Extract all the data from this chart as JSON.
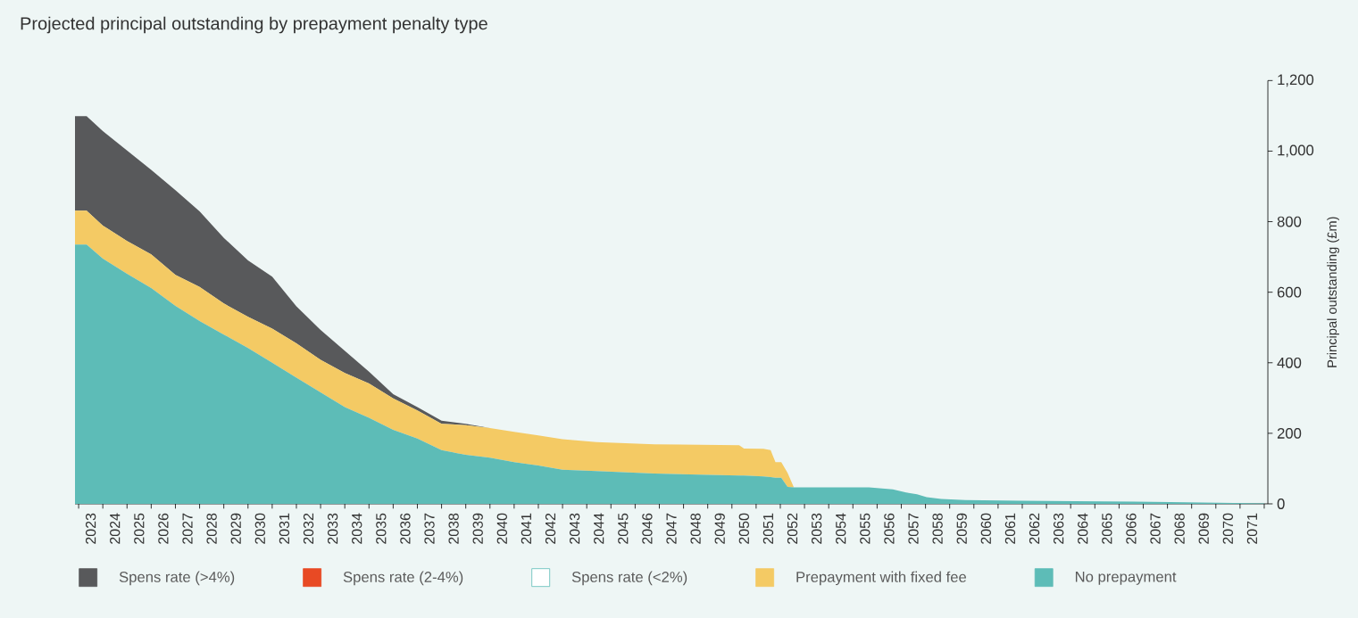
{
  "chart_data": {
    "type": "area",
    "title": "Projected principal outstanding by prepayment penalty type",
    "ylabel": "Principal outstanding (£m)",
    "stacked": true,
    "legend": "bottom",
    "x": [
      2022.85,
      2023.33,
      2024,
      2025,
      2026,
      2027,
      2028,
      2029,
      2030,
      2031,
      2032,
      2033,
      2034,
      2035,
      2036,
      2037,
      2038,
      2039,
      2040,
      2041,
      2042,
      2043,
      2044.4,
      2046.8,
      2050.3,
      2050.5,
      2051.3,
      2051.6,
      2051.8,
      2052.04,
      2052.3,
      2052.56,
      2055.66,
      2056.65,
      2057.2,
      2057.65,
      2058.05,
      2058.65,
      2059.65,
      2061.9,
      2065.3,
      2068.1,
      2070.1,
      2072.0
    ],
    "series": [
      {
        "name": "No prepayment",
        "color": "#5dbcb7",
        "values": [
          735,
          735,
          695,
          652,
          612,
          561,
          518,
          480,
          442,
          400,
          358,
          316,
          274,
          244,
          210,
          185,
          152,
          139,
          131,
          118,
          109,
          97,
          93,
          86,
          80,
          80,
          78,
          76,
          74,
          74,
          48,
          47,
          47,
          41,
          32,
          27,
          19,
          14,
          11,
          9,
          7,
          5,
          3,
          1
        ]
      },
      {
        "name": "Prepayment with fixed fee",
        "color": "#f4ca64",
        "values": [
          96,
          96,
          94,
          93,
          95,
          88,
          97,
          88,
          88,
          97,
          97,
          92,
          97,
          97,
          89,
          80,
          75,
          84,
          84,
          86,
          85,
          86,
          82,
          83,
          86,
          77,
          78,
          76,
          44,
          44,
          40,
          0,
          0,
          0,
          0,
          0,
          0,
          0,
          0,
          0,
          0,
          0,
          0,
          0
        ]
      },
      {
        "name": "Spens rate (<2%)",
        "color": "#ffffff",
        "values": [
          null,
          null,
          null,
          null,
          null,
          null,
          null,
          null,
          null,
          null,
          null,
          null,
          null,
          null,
          null,
          null,
          null,
          null,
          null,
          null,
          null,
          null,
          null,
          null,
          null,
          null,
          null,
          null,
          null,
          null,
          null,
          null,
          null,
          null,
          null,
          null,
          null,
          null,
          null,
          null,
          null,
          null,
          null,
          null
        ]
      },
      {
        "name": "Spens rate (2-4%)",
        "color": "#e84a24",
        "values": [
          null,
          null,
          null,
          null,
          null,
          null,
          null,
          null,
          null,
          null,
          null,
          null,
          null,
          null,
          null,
          null,
          null,
          null,
          null,
          null,
          null,
          null,
          null,
          null,
          null,
          null,
          null,
          null,
          null,
          null,
          null,
          null,
          null,
          null,
          null,
          null,
          null,
          null,
          null,
          null,
          null,
          null,
          null,
          null
        ]
      },
      {
        "name": "Spens rate (>4%)",
        "color": "#58595b",
        "values": [
          268,
          268,
          268,
          257,
          240,
          240,
          214,
          186,
          160,
          147,
          105,
          85,
          63,
          34,
          12,
          9,
          9,
          4,
          0,
          0,
          0,
          0,
          0,
          0,
          0,
          0,
          0,
          0,
          0,
          0,
          0,
          0,
          0,
          0,
          0,
          0,
          0,
          0,
          0,
          0,
          0,
          0,
          0,
          0
        ]
      }
    ],
    "xlim": [
      2022.85,
      2072.15
    ],
    "xticks": [
      {
        "value": 2023,
        "label": null
      },
      {
        "value": 2023.5,
        "label": "2023"
      },
      {
        "value": 2024,
        "label": null
      },
      {
        "value": 2024.5,
        "label": "2024"
      },
      {
        "value": 2025,
        "label": null
      },
      {
        "value": 2025.5,
        "label": "2025"
      },
      {
        "value": 2026,
        "label": null
      },
      {
        "value": 2026.5,
        "label": "2026"
      },
      {
        "value": 2027,
        "label": null
      },
      {
        "value": 2027.5,
        "label": "2027"
      },
      {
        "value": 2028,
        "label": null
      },
      {
        "value": 2028.5,
        "label": "2028"
      },
      {
        "value": 2029,
        "label": null
      },
      {
        "value": 2029.5,
        "label": "2029"
      },
      {
        "value": 2030,
        "label": null
      },
      {
        "value": 2030.5,
        "label": "2030"
      },
      {
        "value": 2031,
        "label": null
      },
      {
        "value": 2031.5,
        "label": "2031"
      },
      {
        "value": 2032,
        "label": null
      },
      {
        "value": 2032.5,
        "label": "2032"
      },
      {
        "value": 2033,
        "label": null
      },
      {
        "value": 2033.5,
        "label": "2033"
      },
      {
        "value": 2034,
        "label": null
      },
      {
        "value": 2034.5,
        "label": "2034"
      },
      {
        "value": 2035,
        "label": null
      },
      {
        "value": 2035.5,
        "label": "2035"
      },
      {
        "value": 2036,
        "label": null
      },
      {
        "value": 2036.5,
        "label": "2036"
      },
      {
        "value": 2037,
        "label": null
      },
      {
        "value": 2037.5,
        "label": "2037"
      },
      {
        "value": 2038,
        "label": null
      },
      {
        "value": 2038.5,
        "label": "2038"
      },
      {
        "value": 2039,
        "label": null
      },
      {
        "value": 2039.5,
        "label": "2039"
      },
      {
        "value": 2040,
        "label": null
      },
      {
        "value": 2040.5,
        "label": "2040"
      },
      {
        "value": 2041,
        "label": null
      },
      {
        "value": 2041.5,
        "label": "2041"
      },
      {
        "value": 2042,
        "label": null
      },
      {
        "value": 2042.5,
        "label": "2042"
      },
      {
        "value": 2043,
        "label": null
      },
      {
        "value": 2043.5,
        "label": "2043"
      },
      {
        "value": 2044,
        "label": null
      },
      {
        "value": 2044.5,
        "label": "2044"
      },
      {
        "value": 2045,
        "label": null
      },
      {
        "value": 2045.5,
        "label": "2045"
      },
      {
        "value": 2046,
        "label": null
      },
      {
        "value": 2046.5,
        "label": "2046"
      },
      {
        "value": 2047,
        "label": null
      },
      {
        "value": 2047.5,
        "label": "2047"
      },
      {
        "value": 2048,
        "label": null
      },
      {
        "value": 2048.5,
        "label": "2048"
      },
      {
        "value": 2049,
        "label": null
      },
      {
        "value": 2049.5,
        "label": "2049"
      },
      {
        "value": 2050,
        "label": null
      },
      {
        "value": 2050.5,
        "label": "2050"
      },
      {
        "value": 2051,
        "label": null
      },
      {
        "value": 2051.5,
        "label": "2051"
      },
      {
        "value": 2052,
        "label": null
      },
      {
        "value": 2052.5,
        "label": "2052"
      },
      {
        "value": 2053,
        "label": null
      },
      {
        "value": 2053.5,
        "label": "2053"
      },
      {
        "value": 2054,
        "label": null
      },
      {
        "value": 2054.5,
        "label": "2054"
      },
      {
        "value": 2055,
        "label": null
      },
      {
        "value": 2055.5,
        "label": "2055"
      },
      {
        "value": 2056,
        "label": null
      },
      {
        "value": 2056.5,
        "label": "2056"
      },
      {
        "value": 2057,
        "label": null
      },
      {
        "value": 2057.5,
        "label": "2057"
      },
      {
        "value": 2058,
        "label": null
      },
      {
        "value": 2058.5,
        "label": "2058"
      },
      {
        "value": 2059,
        "label": null
      },
      {
        "value": 2059.5,
        "label": "2059"
      },
      {
        "value": 2060,
        "label": null
      },
      {
        "value": 2060.5,
        "label": "2060"
      },
      {
        "value": 2061,
        "label": null
      },
      {
        "value": 2061.5,
        "label": "2061"
      },
      {
        "value": 2062,
        "label": null
      },
      {
        "value": 2062.5,
        "label": "2062"
      },
      {
        "value": 2063,
        "label": null
      },
      {
        "value": 2063.5,
        "label": "2063"
      },
      {
        "value": 2064,
        "label": null
      },
      {
        "value": 2064.5,
        "label": "2064"
      },
      {
        "value": 2065,
        "label": null
      },
      {
        "value": 2065.5,
        "label": "2065"
      },
      {
        "value": 2066,
        "label": null
      },
      {
        "value": 2066.5,
        "label": "2066"
      },
      {
        "value": 2067,
        "label": null
      },
      {
        "value": 2067.5,
        "label": "2067"
      },
      {
        "value": 2068,
        "label": null
      },
      {
        "value": 2068.5,
        "label": "2068"
      },
      {
        "value": 2069,
        "label": null
      },
      {
        "value": 2069.5,
        "label": "2069"
      },
      {
        "value": 2070,
        "label": null
      },
      {
        "value": 2070.5,
        "label": "2070"
      },
      {
        "value": 2071,
        "label": null
      },
      {
        "value": 2071.5,
        "label": "2071"
      },
      {
        "value": 2072,
        "label": null
      }
    ],
    "ylim": [
      0,
      1200
    ],
    "yticks": [
      0,
      200,
      400,
      600,
      800,
      {
        "value": 1000,
        "label": "1,000"
      },
      {
        "value": 1200,
        "label": "1,200"
      }
    ]
  }
}
